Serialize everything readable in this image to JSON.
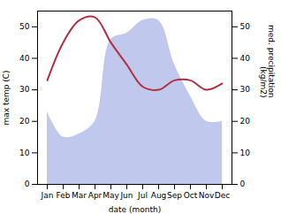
{
  "chart_data": {
    "type": "line",
    "categories": [
      "Jan",
      "Feb",
      "Mar",
      "Apr",
      "May",
      "Jun",
      "Jul",
      "Aug",
      "Sep",
      "Oct",
      "Nov",
      "Dec"
    ],
    "xlabel": "date (month)",
    "ylabel": "max temp (C)",
    "y2label": "med. precipitation\n(kg/m2)",
    "series": [
      {
        "type": "area",
        "axis": "y2",
        "color": "#c0c8ee",
        "values": [
          23,
          15,
          16,
          20,
          46,
          48,
          52,
          52,
          38,
          28,
          20,
          20
        ]
      },
      {
        "type": "line",
        "color": "#b03040",
        "values": [
          33,
          45,
          52,
          53,
          45,
          38,
          31,
          30,
          33,
          33,
          30,
          32
        ]
      }
    ],
    "ylim": [
      0,
      55
    ],
    "yticks": [
      0,
      10,
      20,
      30,
      40,
      50
    ],
    "y2lim": [
      0,
      55
    ],
    "y2ticks": [
      0,
      10,
      20,
      30,
      40,
      50
    ],
    "grid": false
  }
}
